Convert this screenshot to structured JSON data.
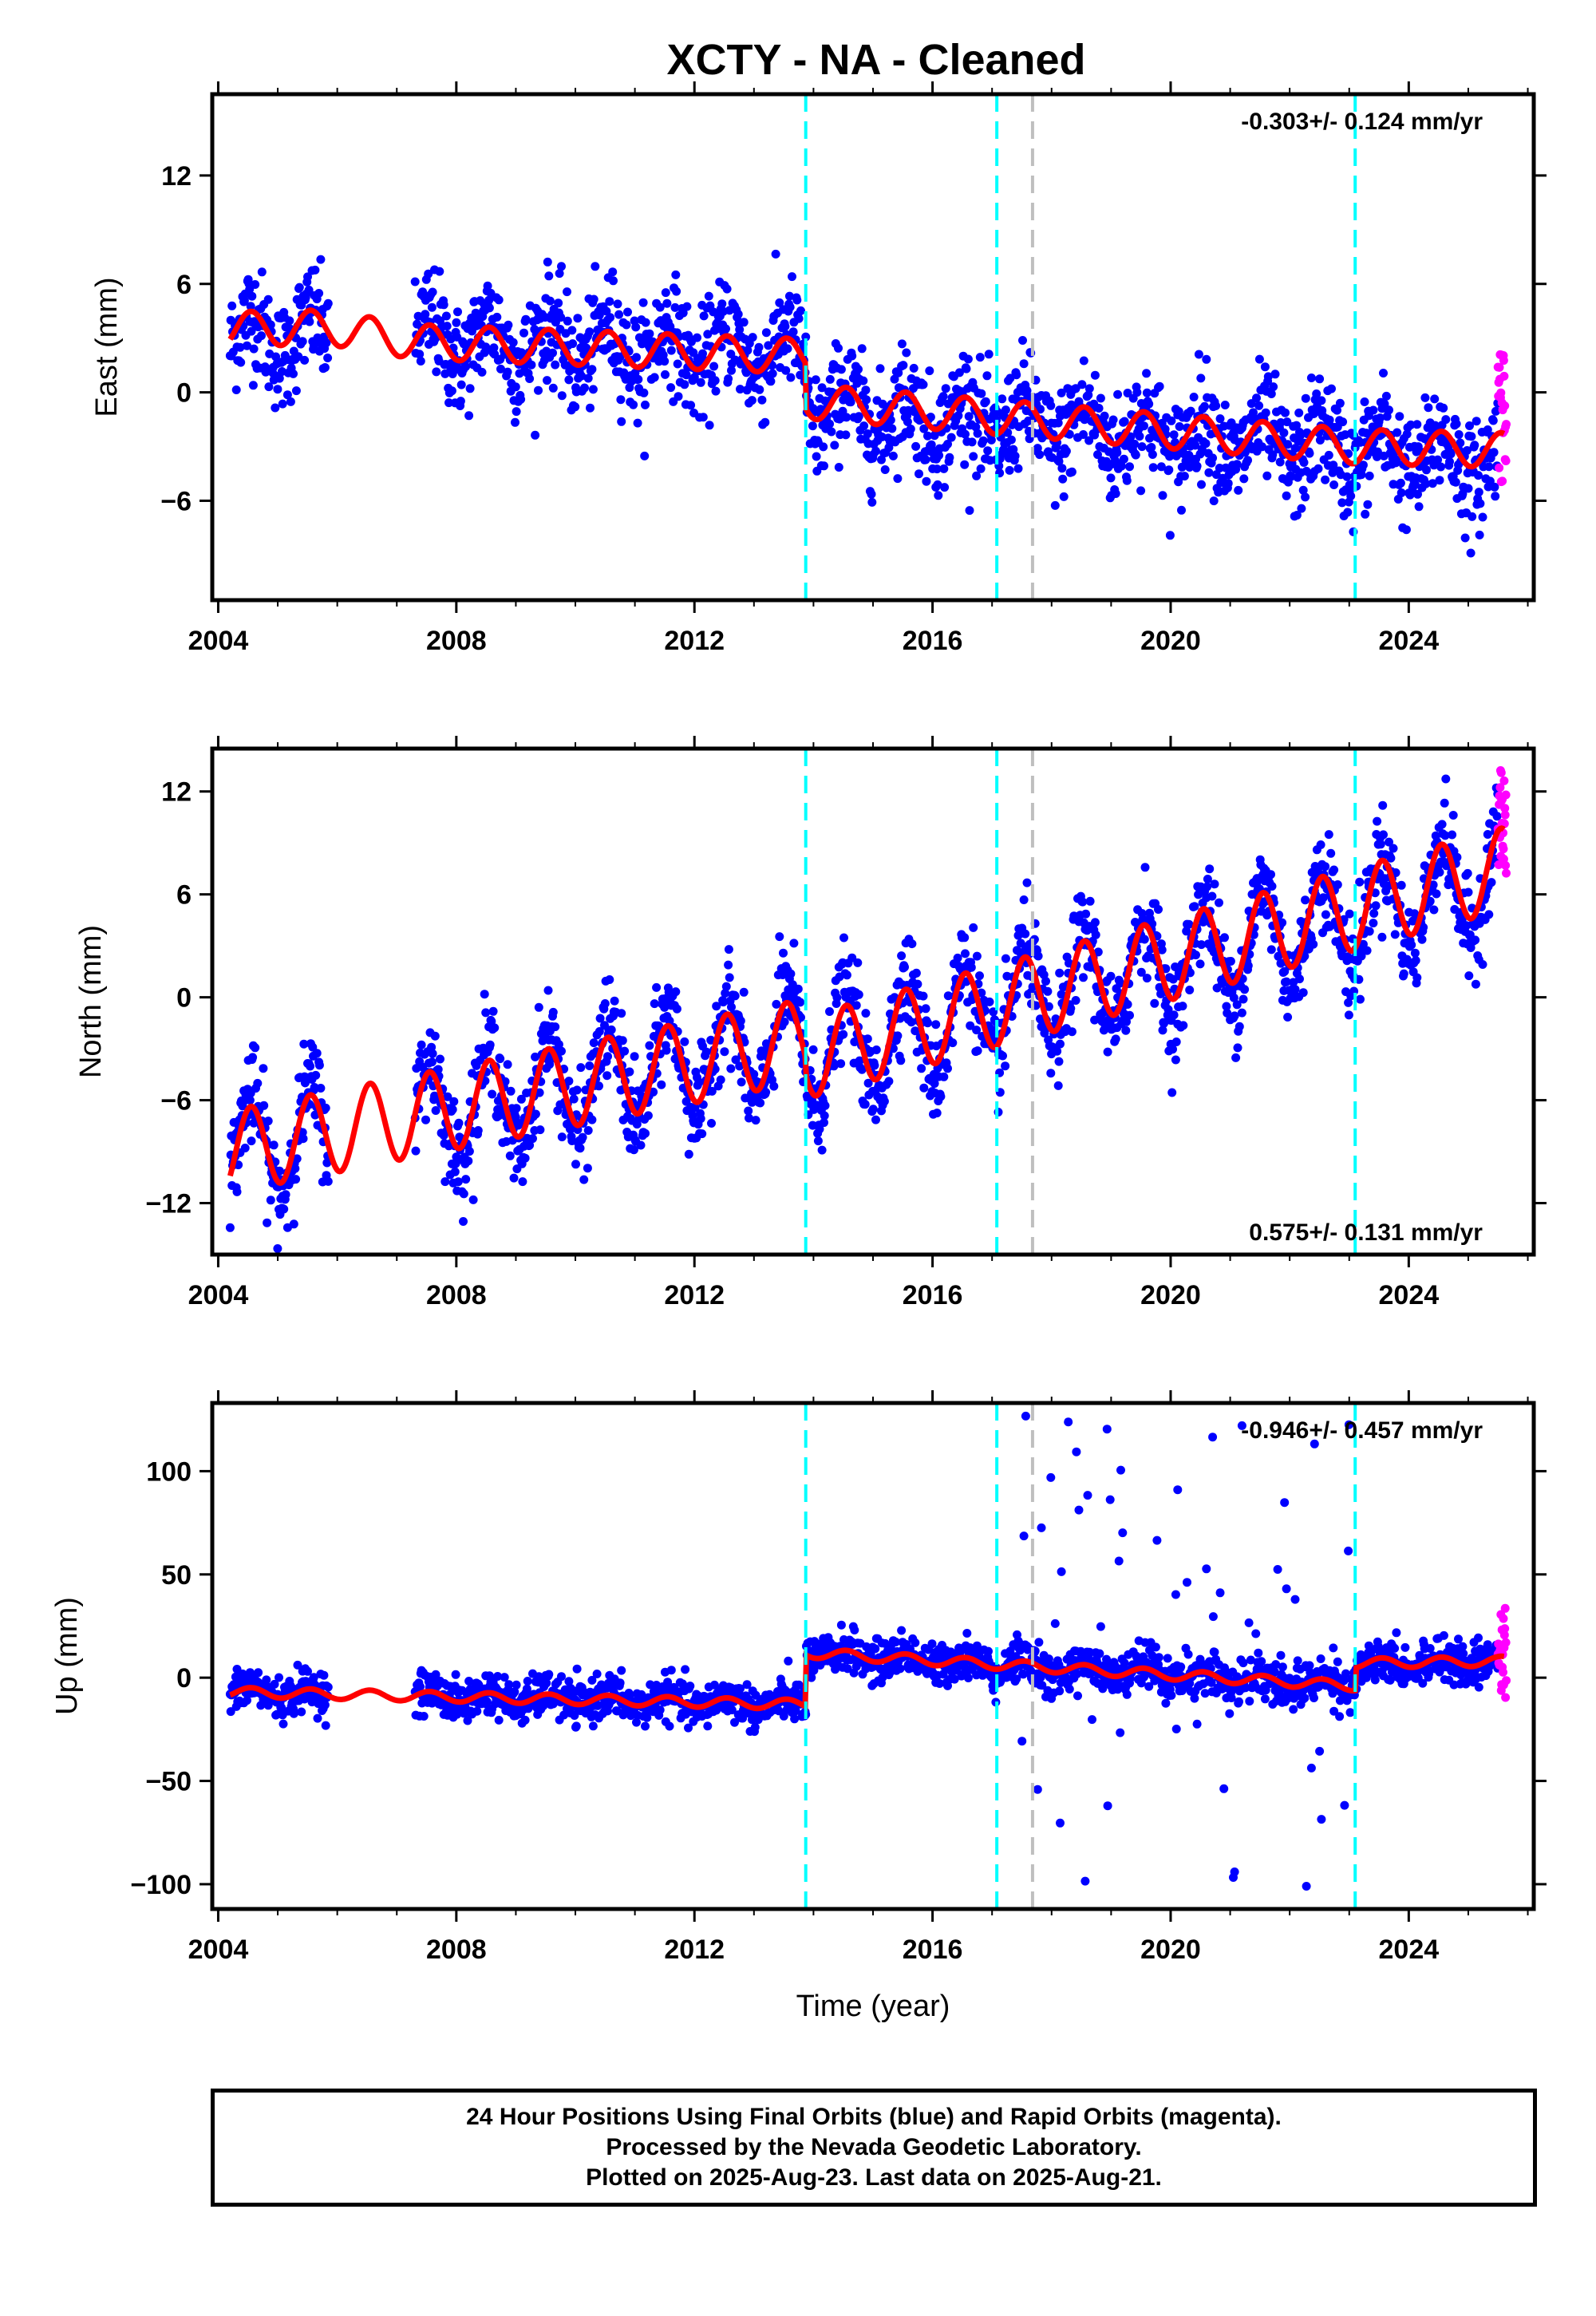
{
  "title": "XCTY  - NA - Cleaned",
  "footer": {
    "line1": "24 Hour Positions Using Final Orbits (blue) and Rapid Orbits (magenta).",
    "line2": "Processed by the Nevada Geodetic Laboratory.",
    "line3": "Plotted on 2025-Aug-23. Last data on 2025-Aug-21."
  },
  "colors": {
    "final": "#0000ff",
    "rapid": "#ff00ff",
    "model": "#ff0000",
    "equipment_change": "#00ffff",
    "other_change": "#bfbfbf"
  },
  "chart_data": [
    {
      "type": "scatter",
      "component": "east",
      "ylabel": "East (mm)",
      "xlabel": "",
      "xlim": [
        2003.9,
        2026.1
      ],
      "ylim": [
        -11.5,
        16.5
      ],
      "xticks": [
        2004,
        2008,
        2012,
        2016,
        2020,
        2024
      ],
      "yticks": [
        -6,
        0,
        6,
        12
      ],
      "rate_text": "-0.303+/- 0.124 mm/yr",
      "rate_position": "top-right",
      "vlines_cyan": [
        2013.87,
        2017.08
      ],
      "vlines_gray": [
        2017.68
      ],
      "vline_cyan_2": 2023.1,
      "series": [
        {
          "name": "Final Orbits (blue)",
          "start": 2004.2,
          "end": 2025.5,
          "gaps": [
            [
              2005.85,
              2007.3
            ]
          ],
          "segments": [
            [
              2004.2,
              3.2
            ],
            [
              2013.87,
              2.2
            ],
            [
              2013.88,
              -0.9
            ],
            [
              2023.1,
              -3.2
            ],
            [
              2025.5,
              -3.9
            ]
          ],
          "seasonal_amp": 1.2,
          "scatter": 1.5
        },
        {
          "name": "Rapid Orbits (magenta)",
          "start": 2025.5,
          "end": 2025.64,
          "center": -1.0,
          "spread": 5.0
        }
      ],
      "model_line": [
        [
          2004.2,
          3.5
        ],
        [
          2005.85,
          3.6
        ],
        [
          2007.3,
          2.8
        ],
        [
          2013.87,
          2.0
        ],
        [
          2013.88,
          -0.5
        ],
        [
          2023.1,
          -3.0
        ],
        [
          2025.6,
          -3.2
        ]
      ]
    },
    {
      "type": "scatter",
      "component": "north",
      "ylabel": "North (mm)",
      "xlabel": "",
      "xlim": [
        2003.9,
        2026.1
      ],
      "ylim": [
        -15,
        14.5
      ],
      "xticks": [
        2004,
        2008,
        2012,
        2016,
        2020,
        2024
      ],
      "yticks": [
        -12,
        -6,
        0,
        6,
        12
      ],
      "rate_text": "0.575+/- 0.131 mm/yr",
      "rate_position": "bottom-right",
      "vlines_cyan": [
        2013.87,
        2017.08
      ],
      "vlines_gray": [
        2017.68
      ],
      "vline_cyan_2": 2023.1,
      "series": [
        {
          "name": "Final Orbits (blue)",
          "start": 2004.2,
          "end": 2025.5,
          "gaps": [
            [
              2005.85,
              2007.3
            ]
          ],
          "segments": [
            [
              2004.2,
              -9.0
            ],
            [
              2013.87,
              -2.5
            ],
            [
              2013.88,
              -3.5
            ],
            [
              2025.5,
              7.0
            ]
          ],
          "seasonal_amp": 3.0,
          "scatter": 1.4
        },
        {
          "name": "Rapid Orbits (magenta)",
          "start": 2025.5,
          "end": 2025.64,
          "center": 10.0,
          "spread": 3.5
        }
      ],
      "model_line": [
        [
          2004.2,
          -9.0
        ],
        [
          2013.87,
          -2.5
        ],
        [
          2013.88,
          -3.5
        ],
        [
          2025.6,
          7.5
        ]
      ]
    },
    {
      "type": "scatter",
      "component": "up",
      "ylabel": "Up (mm)",
      "xlabel": "Time (year)",
      "xlim": [
        2003.9,
        2026.1
      ],
      "ylim": [
        -112,
        133
      ],
      "xticks": [
        2004,
        2008,
        2012,
        2016,
        2020,
        2024
      ],
      "yticks": [
        -100,
        -50,
        0,
        50,
        100
      ],
      "rate_text": "-0.946+/- 0.457 mm/yr",
      "rate_position": "top-right",
      "vlines_cyan": [
        2013.87,
        2017.08
      ],
      "vlines_gray": [
        2017.68
      ],
      "vline_cyan_2": 2023.1,
      "series": [
        {
          "name": "Final Orbits (blue)",
          "start": 2004.2,
          "end": 2025.5,
          "gaps": [
            [
              2005.85,
              2007.3
            ]
          ],
          "segments": [
            [
              2004.2,
              -7
            ],
            [
              2013.87,
              -13
            ],
            [
              2013.88,
              12
            ],
            [
              2023.1,
              -4
            ],
            [
              2023.11,
              7
            ],
            [
              2025.5,
              8
            ]
          ],
          "seasonal_amp": 3.0,
          "scatter": 5.0,
          "outliers_range": [
            2017.1,
            2023.1
          ],
          "outliers_min": -105,
          "outliers_max": 130
        },
        {
          "name": "Rapid Orbits (magenta)",
          "start": 2025.5,
          "end": 2025.64,
          "center": 12,
          "spread": 22
        }
      ],
      "model_line": [
        [
          2004.2,
          -7
        ],
        [
          2013.87,
          -13
        ],
        [
          2013.88,
          12
        ],
        [
          2023.1,
          -4
        ],
        [
          2023.11,
          7
        ],
        [
          2025.6,
          8
        ]
      ]
    }
  ]
}
